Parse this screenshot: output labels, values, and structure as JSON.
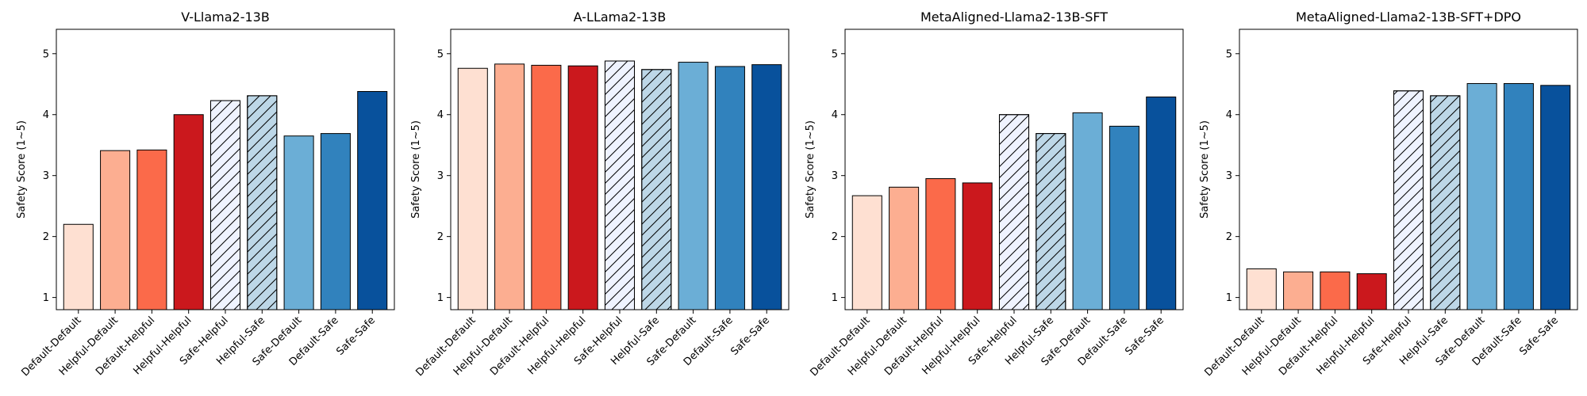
{
  "chart_data": [
    {
      "type": "bar",
      "title": "V-Llama2-13B",
      "xlabel": "",
      "ylabel": "Safety Score (1~5)",
      "ylim": [
        0.8,
        5.4
      ],
      "yticks": [
        1,
        2,
        3,
        4,
        5
      ],
      "categories": [
        "Default-Default",
        "Helpful-Default",
        "Default-Helpful",
        "Helpful-Helpful",
        "Safe-Helpful",
        "Helpful-Safe",
        "Safe-Default",
        "Default-Safe",
        "Safe-Safe"
      ],
      "values": [
        2.2,
        3.41,
        3.42,
        4.0,
        4.23,
        4.31,
        3.65,
        3.69,
        4.38
      ]
    },
    {
      "type": "bar",
      "title": "A-LLama2-13B",
      "xlabel": "",
      "ylabel": "Safety Score (1~5)",
      "ylim": [
        0.8,
        5.4
      ],
      "yticks": [
        1,
        2,
        3,
        4,
        5
      ],
      "categories": [
        "Default-Default",
        "Helpful-Default",
        "Default-Helpful",
        "Helpful-Helpful",
        "Safe-Helpful",
        "Helpful-Safe",
        "Safe-Default",
        "Default-Safe",
        "Safe-Safe"
      ],
      "values": [
        4.76,
        4.83,
        4.81,
        4.8,
        4.88,
        4.74,
        4.86,
        4.79,
        4.82
      ]
    },
    {
      "type": "bar",
      "title": "MetaAligned-Llama2-13B-SFT",
      "xlabel": "",
      "ylabel": "Safety Score (1~5)",
      "ylim": [
        0.8,
        5.4
      ],
      "yticks": [
        1,
        2,
        3,
        4,
        5
      ],
      "categories": [
        "Default-Default",
        "Helpful-Default",
        "Default-Helpful",
        "Helpful-Helpful",
        "Safe-Helpful",
        "Helpful-Safe",
        "Safe-Default",
        "Default-Safe",
        "Safe-Safe"
      ],
      "values": [
        2.67,
        2.81,
        2.95,
        2.88,
        4.0,
        3.69,
        4.03,
        3.81,
        4.29
      ]
    },
    {
      "type": "bar",
      "title": "MetaAligned-Llama2-13B-SFT+DPO",
      "xlabel": "",
      "ylabel": "Safety Score (1~5)",
      "ylim": [
        0.8,
        5.4
      ],
      "yticks": [
        1,
        2,
        3,
        4,
        5
      ],
      "categories": [
        "Default-Default",
        "Helpful-Default",
        "Default-Helpful",
        "Helpful-Helpful",
        "Safe-Helpful",
        "Helpful-Safe",
        "Safe-Default",
        "Default-Safe",
        "Safe-Safe"
      ],
      "values": [
        1.47,
        1.42,
        1.42,
        1.39,
        4.39,
        4.31,
        4.51,
        4.51,
        4.48
      ]
    }
  ],
  "bar_colors": [
    "#fee0d2",
    "#fcae91",
    "#fb6a4a",
    "#cb181d",
    "#eff3ff",
    "#bdd7e7",
    "#6baed6",
    "#3182bd",
    "#08519c"
  ],
  "bar_hatched": [
    false,
    false,
    false,
    false,
    true,
    true,
    false,
    false,
    false
  ]
}
